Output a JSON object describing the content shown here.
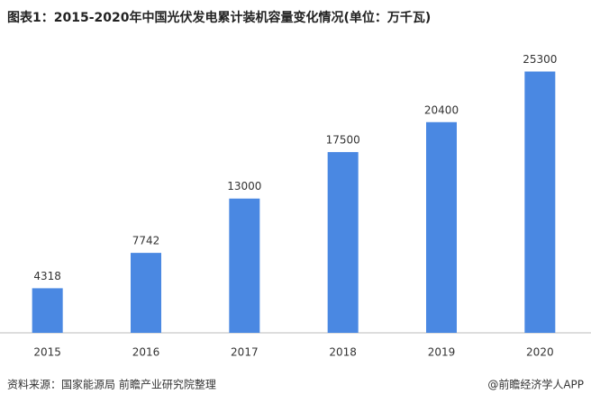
{
  "chart_data": {
    "type": "bar",
    "title": "图表1：2015-2020年中国光伏发电累计装机容量变化情况(单位：万千瓦)",
    "categories": [
      "2015",
      "2016",
      "2017",
      "2018",
      "2019",
      "2020"
    ],
    "values": [
      4318,
      7742,
      13000,
      17500,
      20400,
      25300
    ],
    "color": "#4a88e2",
    "ylim": [
      0,
      27000
    ],
    "source": "资料来源：国家能源局 前瞻产业研究院整理",
    "credit": "@前瞻经济学人APP"
  }
}
